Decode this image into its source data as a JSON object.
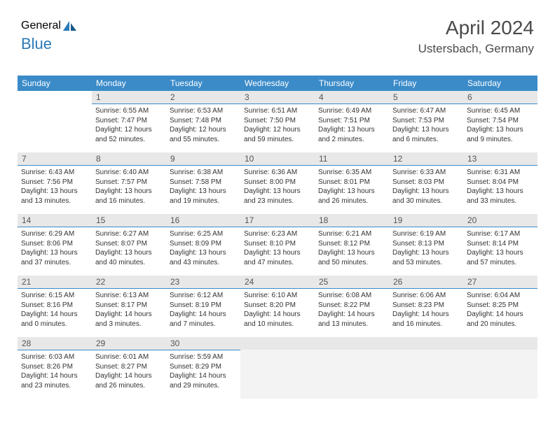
{
  "logo": {
    "part1": "General",
    "part2": "Blue"
  },
  "title": "April 2024",
  "location": "Ustersbach, Germany",
  "weekdays": [
    "Sunday",
    "Monday",
    "Tuesday",
    "Wednesday",
    "Thursday",
    "Friday",
    "Saturday"
  ],
  "first_weekday_index": 1,
  "days_in_month": 30,
  "colors": {
    "header_bg": "#3b8bc9",
    "header_fg": "#ffffff",
    "daynum_bg": "#e8e8e8",
    "daynum_border": "#3b8bc9",
    "text": "#333333",
    "logo_gray": "#555555",
    "logo_blue": "#2a7ab8"
  },
  "days": [
    {
      "n": 1,
      "sunrise": "6:55 AM",
      "sunset": "7:47 PM",
      "daylight": "12 hours and 52 minutes."
    },
    {
      "n": 2,
      "sunrise": "6:53 AM",
      "sunset": "7:48 PM",
      "daylight": "12 hours and 55 minutes."
    },
    {
      "n": 3,
      "sunrise": "6:51 AM",
      "sunset": "7:50 PM",
      "daylight": "12 hours and 59 minutes."
    },
    {
      "n": 4,
      "sunrise": "6:49 AM",
      "sunset": "7:51 PM",
      "daylight": "13 hours and 2 minutes."
    },
    {
      "n": 5,
      "sunrise": "6:47 AM",
      "sunset": "7:53 PM",
      "daylight": "13 hours and 6 minutes."
    },
    {
      "n": 6,
      "sunrise": "6:45 AM",
      "sunset": "7:54 PM",
      "daylight": "13 hours and 9 minutes."
    },
    {
      "n": 7,
      "sunrise": "6:43 AM",
      "sunset": "7:56 PM",
      "daylight": "13 hours and 13 minutes."
    },
    {
      "n": 8,
      "sunrise": "6:40 AM",
      "sunset": "7:57 PM",
      "daylight": "13 hours and 16 minutes."
    },
    {
      "n": 9,
      "sunrise": "6:38 AM",
      "sunset": "7:58 PM",
      "daylight": "13 hours and 19 minutes."
    },
    {
      "n": 10,
      "sunrise": "6:36 AM",
      "sunset": "8:00 PM",
      "daylight": "13 hours and 23 minutes."
    },
    {
      "n": 11,
      "sunrise": "6:35 AM",
      "sunset": "8:01 PM",
      "daylight": "13 hours and 26 minutes."
    },
    {
      "n": 12,
      "sunrise": "6:33 AM",
      "sunset": "8:03 PM",
      "daylight": "13 hours and 30 minutes."
    },
    {
      "n": 13,
      "sunrise": "6:31 AM",
      "sunset": "8:04 PM",
      "daylight": "13 hours and 33 minutes."
    },
    {
      "n": 14,
      "sunrise": "6:29 AM",
      "sunset": "8:06 PM",
      "daylight": "13 hours and 37 minutes."
    },
    {
      "n": 15,
      "sunrise": "6:27 AM",
      "sunset": "8:07 PM",
      "daylight": "13 hours and 40 minutes."
    },
    {
      "n": 16,
      "sunrise": "6:25 AM",
      "sunset": "8:09 PM",
      "daylight": "13 hours and 43 minutes."
    },
    {
      "n": 17,
      "sunrise": "6:23 AM",
      "sunset": "8:10 PM",
      "daylight": "13 hours and 47 minutes."
    },
    {
      "n": 18,
      "sunrise": "6:21 AM",
      "sunset": "8:12 PM",
      "daylight": "13 hours and 50 minutes."
    },
    {
      "n": 19,
      "sunrise": "6:19 AM",
      "sunset": "8:13 PM",
      "daylight": "13 hours and 53 minutes."
    },
    {
      "n": 20,
      "sunrise": "6:17 AM",
      "sunset": "8:14 PM",
      "daylight": "13 hours and 57 minutes."
    },
    {
      "n": 21,
      "sunrise": "6:15 AM",
      "sunset": "8:16 PM",
      "daylight": "14 hours and 0 minutes."
    },
    {
      "n": 22,
      "sunrise": "6:13 AM",
      "sunset": "8:17 PM",
      "daylight": "14 hours and 3 minutes."
    },
    {
      "n": 23,
      "sunrise": "6:12 AM",
      "sunset": "8:19 PM",
      "daylight": "14 hours and 7 minutes."
    },
    {
      "n": 24,
      "sunrise": "6:10 AM",
      "sunset": "8:20 PM",
      "daylight": "14 hours and 10 minutes."
    },
    {
      "n": 25,
      "sunrise": "6:08 AM",
      "sunset": "8:22 PM",
      "daylight": "14 hours and 13 minutes."
    },
    {
      "n": 26,
      "sunrise": "6:06 AM",
      "sunset": "8:23 PM",
      "daylight": "14 hours and 16 minutes."
    },
    {
      "n": 27,
      "sunrise": "6:04 AM",
      "sunset": "8:25 PM",
      "daylight": "14 hours and 20 minutes."
    },
    {
      "n": 28,
      "sunrise": "6:03 AM",
      "sunset": "8:26 PM",
      "daylight": "14 hours and 23 minutes."
    },
    {
      "n": 29,
      "sunrise": "6:01 AM",
      "sunset": "8:27 PM",
      "daylight": "14 hours and 26 minutes."
    },
    {
      "n": 30,
      "sunrise": "5:59 AM",
      "sunset": "8:29 PM",
      "daylight": "14 hours and 29 minutes."
    }
  ],
  "labels": {
    "sunrise": "Sunrise:",
    "sunset": "Sunset:",
    "daylight": "Daylight:"
  }
}
